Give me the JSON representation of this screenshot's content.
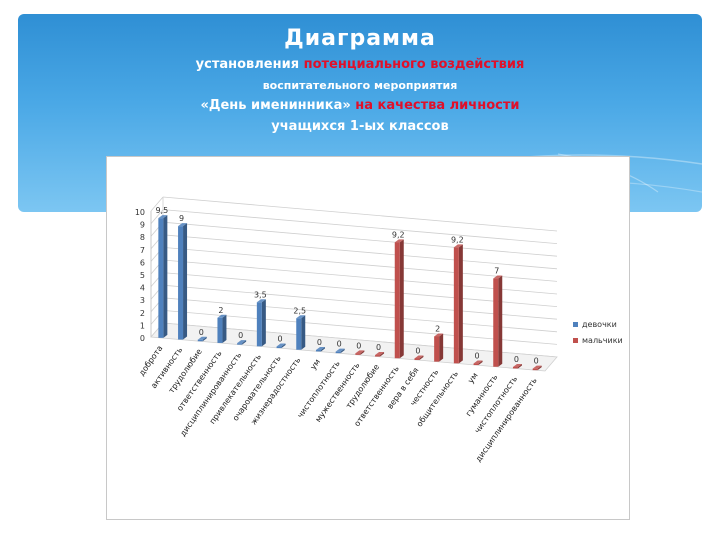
{
  "header": {
    "title": "Диаграмма",
    "line1_plain": "установления ",
    "line1_red": "потенциального воздействия",
    "line2": "воспитательного мероприятия",
    "line3_plain": "«День именинника» ",
    "line3_red": "на качества личности",
    "line4": "учащихся 1-ых классов"
  },
  "chart_data": {
    "type": "bar",
    "title": "",
    "xlabel": "",
    "ylabel": "",
    "ylim": [
      0,
      10
    ],
    "yticks": [
      "0",
      "1",
      "2",
      "3",
      "4",
      "5",
      "6",
      "7",
      "8",
      "9",
      "10"
    ],
    "grid": true,
    "legend_position": "right",
    "categories": [
      "доброта",
      "активность",
      "трудолюбие",
      "ответственность",
      "дисциплинированность",
      "привлекательность",
      "очаровательность",
      "жизнерадостность",
      "ум",
      "чистоплотность",
      "мужественность",
      "трудолюбие",
      "ответственность",
      "вера в себя",
      "честность",
      "общительность",
      "ум",
      "гуманность",
      "чистоплотность",
      "дисциплинированность"
    ],
    "series": [
      {
        "name": "девочки",
        "color": "#4f81bd",
        "values": [
          9.5,
          9,
          0,
          2,
          0,
          3.5,
          0,
          2.5,
          0,
          0,
          null,
          null,
          null,
          null,
          null,
          null,
          null,
          null,
          null,
          null
        ],
        "labels": [
          "9,5",
          "9",
          "0",
          "2",
          "0",
          "3,5",
          "0",
          "2,5",
          "0",
          "0",
          "",
          "",
          "",
          "",
          "",
          "",
          "",
          "",
          "",
          ""
        ]
      },
      {
        "name": "мальчики",
        "color": "#c0504d",
        "values": [
          null,
          null,
          null,
          null,
          null,
          null,
          null,
          null,
          null,
          null,
          0,
          0,
          9.2,
          0,
          2,
          9.2,
          0,
          7,
          0,
          0
        ],
        "labels": [
          "",
          "",
          "",
          "",
          "",
          "",
          "",
          "",
          "",
          "",
          "0",
          "0",
          "9,2",
          "0",
          "2",
          "9,2",
          "0",
          "7",
          "0",
          "0"
        ]
      }
    ]
  }
}
